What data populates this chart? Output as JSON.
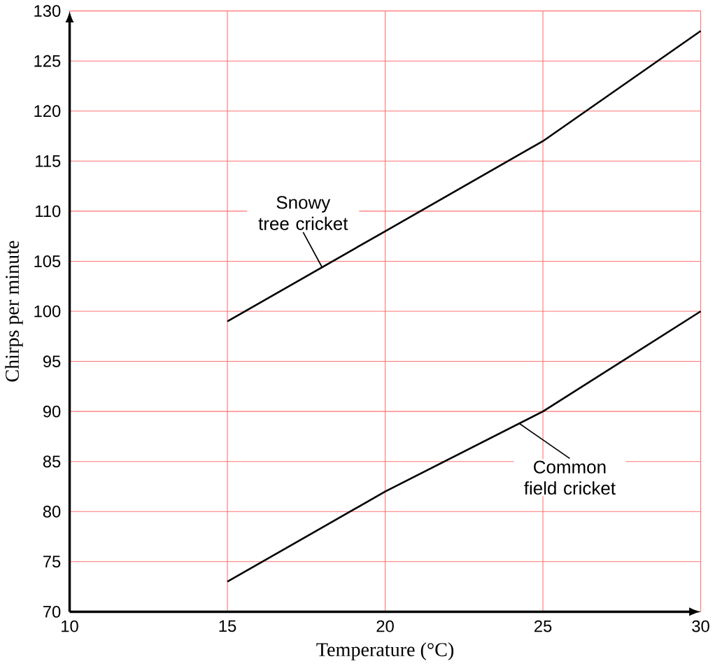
{
  "chart_data": {
    "type": "line",
    "xlabel": "Temperature (°C)",
    "ylabel": "Chirps per minute",
    "x": [
      15,
      20,
      25,
      30
    ],
    "series": [
      {
        "name": "Snowy tree cricket",
        "color": "#000000",
        "values": [
          99,
          108,
          117,
          128
        ]
      },
      {
        "name": "Common field cricket",
        "color": "#000000",
        "values": [
          73,
          82,
          90,
          100
        ]
      }
    ],
    "xlim": [
      10,
      30
    ],
    "ylim": [
      70,
      130
    ],
    "xticks": [
      10,
      15,
      20,
      25,
      30
    ],
    "yticks": [
      70,
      75,
      80,
      85,
      90,
      95,
      100,
      105,
      110,
      115,
      120,
      125,
      130
    ],
    "grid": true,
    "marker": "none",
    "line_style": "solid"
  }
}
